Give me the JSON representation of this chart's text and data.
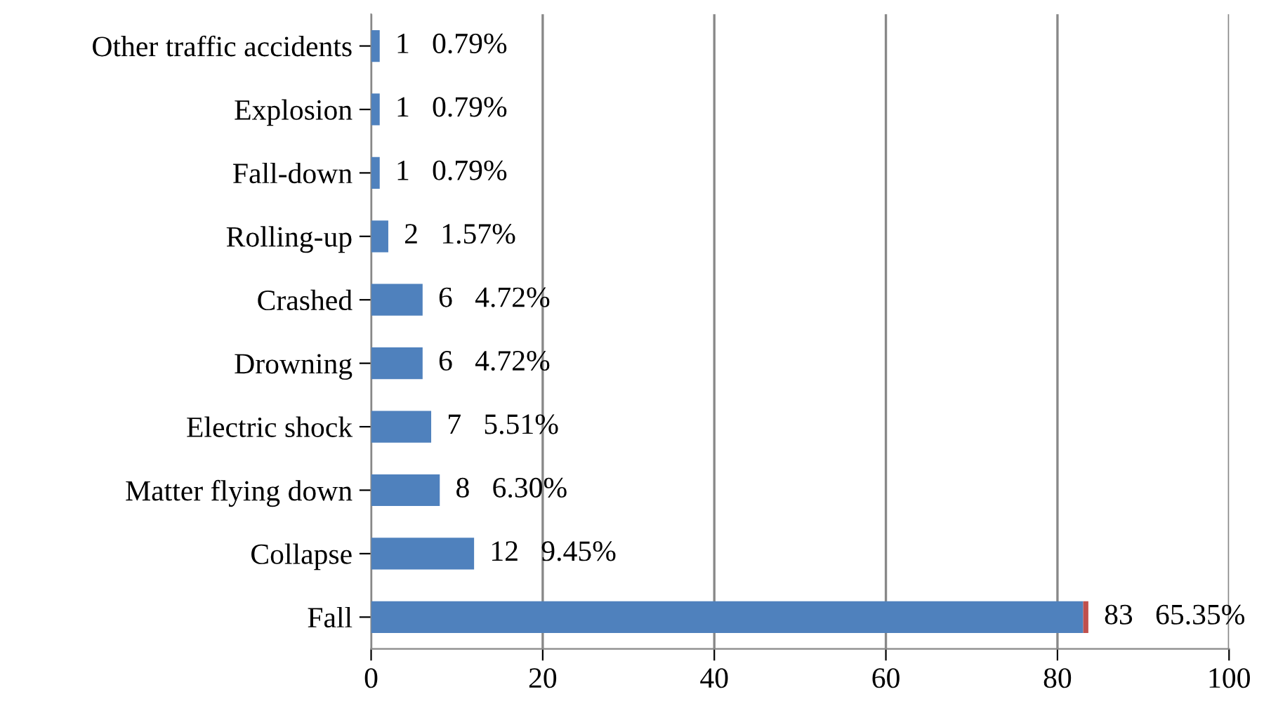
{
  "chart_data": {
    "type": "bar",
    "orientation": "horizontal",
    "stacked": true,
    "categories": [
      "Other traffic accidents",
      "Explosion",
      "Fall-down",
      "Rolling-up",
      "Crashed",
      "Drowning",
      "Electric shock",
      "Matter flying down",
      "Collapse",
      "Fall"
    ],
    "series": [
      {
        "color": "#4f81bd",
        "values": [
          1,
          1,
          1,
          2,
          6,
          6,
          7,
          8,
          12,
          83
        ],
        "value_labels": [
          "1   0.79%",
          "1   0.79%",
          "1   0.79%",
          "2   1.57%",
          "6   4.72%",
          "6   4.72%",
          "7   5.51%",
          "8   6.30%",
          "12   9.45%",
          "83   65.35%"
        ]
      },
      {
        "color": "#c0504d",
        "values": [
          null,
          null,
          null,
          null,
          null,
          null,
          null,
          null,
          null,
          0.6
        ]
      }
    ],
    "xlim": [
      0,
      100
    ],
    "xticks": [
      0,
      20,
      40,
      60,
      80,
      100
    ],
    "grid": "x",
    "legend": false
  }
}
